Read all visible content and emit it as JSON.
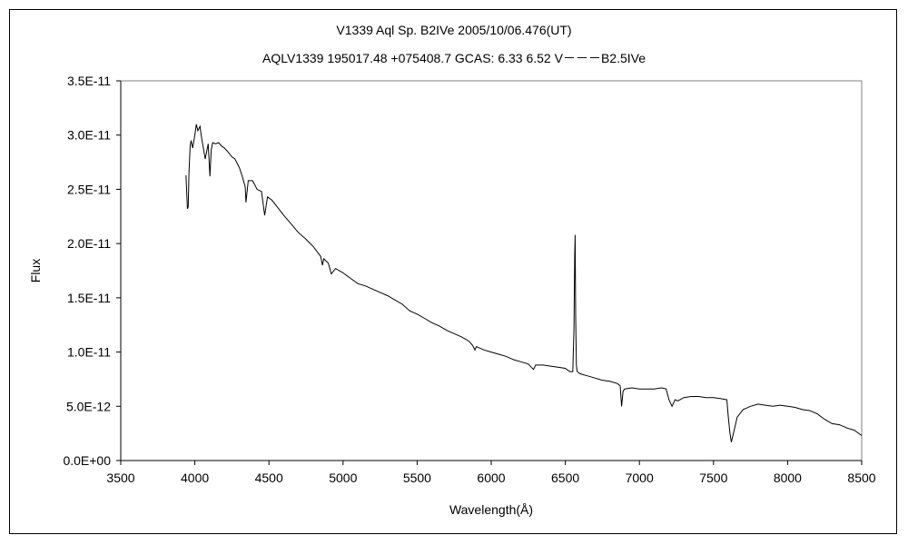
{
  "chart_data": {
    "type": "line",
    "title": "V1339 Aql    Sp. B2IVe    2005/10/06.476(UT)",
    "subtitle": "AQLV1339 195017.48 +075408.7 GCAS: 6.33 6.52 V－－－B2.5IVe",
    "xlabel": "Wavelength(Å)",
    "ylabel": "Flux",
    "xlim": [
      3500,
      8500
    ],
    "ylim": [
      0,
      3.5e-11
    ],
    "x_ticks": [
      3500,
      4000,
      4500,
      5000,
      5500,
      6000,
      6500,
      7000,
      7500,
      8000,
      8500
    ],
    "x_tick_labels": [
      "3500",
      "4000",
      "4500",
      "5000",
      "5500",
      "6000",
      "6500",
      "7000",
      "7500",
      "8000",
      "8500"
    ],
    "y_ticks": [
      0,
      5e-12,
      1e-11,
      1.5e-11,
      2e-11,
      2.5e-11,
      3e-11,
      3.5e-11
    ],
    "y_tick_labels": [
      "0.0E+00",
      "5.0E-12",
      "1.0E-11",
      "1.5E-11",
      "2.0E-11",
      "2.5E-11",
      "3.0E-11",
      "3.5E-11"
    ],
    "grid": false,
    "series": [
      {
        "x": [
          3940,
          3950,
          3955,
          3960,
          3965,
          3968,
          3975,
          3985,
          4000,
          4010,
          4020,
          4035,
          4045,
          4055,
          4070,
          4090,
          4102,
          4110,
          4120,
          4140,
          4160,
          4180,
          4200,
          4220,
          4250,
          4270,
          4300,
          4320,
          4340,
          4345,
          4360,
          4390,
          4420,
          4450,
          4471,
          4490,
          4520,
          4560,
          4600,
          4650,
          4700,
          4750,
          4800,
          4850,
          4861,
          4870,
          4900,
          4921,
          4950,
          5000,
          5050,
          5100,
          5150,
          5200,
          5250,
          5300,
          5350,
          5400,
          5450,
          5500,
          5550,
          5600,
          5650,
          5700,
          5750,
          5800,
          5850,
          5875,
          5890,
          5900,
          5950,
          6000,
          6050,
          6100,
          6150,
          6200,
          6250,
          6270,
          6285,
          6300,
          6350,
          6400,
          6450,
          6500,
          6530,
          6550,
          6558,
          6563,
          6566,
          6570,
          6575,
          6580,
          6600,
          6650,
          6700,
          6750,
          6800,
          6850,
          6870,
          6880,
          6890,
          6900,
          6950,
          7000,
          7050,
          7100,
          7150,
          7180,
          7200,
          7220,
          7240,
          7260,
          7300,
          7350,
          7400,
          7450,
          7500,
          7550,
          7590,
          7600,
          7610,
          7620,
          7640,
          7660,
          7700,
          7750,
          7800,
          7850,
          7900,
          7950,
          8000,
          8050,
          8100,
          8150,
          8200,
          8250,
          8300,
          8350,
          8400,
          8450,
          8500
        ],
        "y": [
          2.63e-11,
          2.32e-11,
          2.34e-11,
          2.65e-11,
          2.8e-11,
          2.9e-11,
          2.95e-11,
          2.88e-11,
          3e-11,
          3.1e-11,
          3.04e-11,
          3.08e-11,
          2.98e-11,
          2.9e-11,
          2.78e-11,
          2.92e-11,
          2.62e-11,
          2.86e-11,
          2.93e-11,
          2.92e-11,
          2.93e-11,
          2.9e-11,
          2.88e-11,
          2.85e-11,
          2.8e-11,
          2.78e-11,
          2.7e-11,
          2.62e-11,
          2.52e-11,
          2.38e-11,
          2.58e-11,
          2.58e-11,
          2.5e-11,
          2.48e-11,
          2.26e-11,
          2.43e-11,
          2.4e-11,
          2.33e-11,
          2.26e-11,
          2.18e-11,
          2.1e-11,
          2.04e-11,
          1.97e-11,
          1.88e-11,
          1.8e-11,
          1.86e-11,
          1.82e-11,
          1.72e-11,
          1.77e-11,
          1.73e-11,
          1.68e-11,
          1.63e-11,
          1.61e-11,
          1.58e-11,
          1.55e-11,
          1.52e-11,
          1.48e-11,
          1.44e-11,
          1.38e-11,
          1.35e-11,
          1.31e-11,
          1.27e-11,
          1.24e-11,
          1.2e-11,
          1.17e-11,
          1.14e-11,
          1.1e-11,
          1.06e-11,
          1.02e-11,
          1.05e-11,
          1.02e-11,
          1e-11,
          9.8e-12,
          9.6e-12,
          9.3e-12,
          9.1e-12,
          8.9e-12,
          8.6e-12,
          8.4e-12,
          8.8e-12,
          8.8e-12,
          8.7e-12,
          8.6e-12,
          8.5e-12,
          8.2e-12,
          8.2e-12,
          1.2e-11,
          1.88e-11,
          2.08e-11,
          1.32e-11,
          8.8e-12,
          8.2e-12,
          8e-12,
          7.8e-12,
          7.6e-12,
          7.4e-12,
          7.3e-12,
          7.1e-12,
          6.9e-12,
          5e-12,
          6.4e-12,
          6.6e-12,
          6.7e-12,
          6.6e-12,
          6.6e-12,
          6.6e-12,
          6.7e-12,
          6.6e-12,
          5.6e-12,
          5e-12,
          5.6e-12,
          5.5e-12,
          5.8e-12,
          5.9e-12,
          5.9e-12,
          5.8e-12,
          5.8e-12,
          5.7e-12,
          5.6e-12,
          4e-12,
          2.6e-12,
          1.7e-12,
          2.8e-12,
          4e-12,
          4.7e-12,
          5e-12,
          5.2e-12,
          5.1e-12,
          5e-12,
          5.1e-12,
          5e-12,
          4.9e-12,
          4.7e-12,
          4.6e-12,
          4.3e-12,
          3.8e-12,
          3.4e-12,
          3.3e-12,
          3e-12,
          2.8e-12,
          2.3e-12
        ]
      }
    ],
    "line_color": "#000000"
  }
}
